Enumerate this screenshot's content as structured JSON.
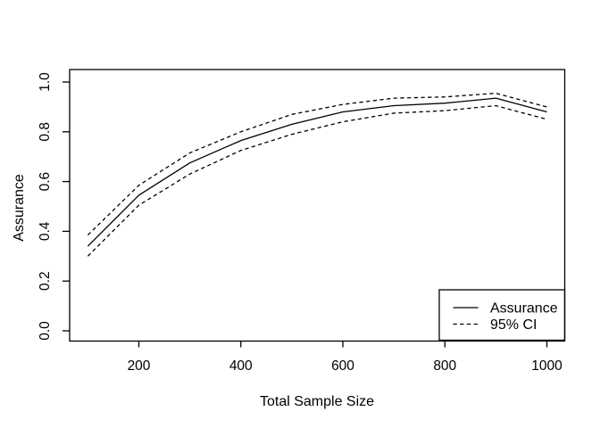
{
  "colors": {
    "background": "#ffffff",
    "foreground": "#000000"
  },
  "chart_data": {
    "type": "line",
    "title": "",
    "xlabel": "Total Sample Size",
    "ylabel": "Assurance",
    "x": [
      100,
      200,
      300,
      400,
      500,
      600,
      700,
      800,
      900,
      1000
    ],
    "series": [
      {
        "name": "Assurance",
        "line_style": "solid",
        "values": [
          0.34,
          0.545,
          0.675,
          0.765,
          0.83,
          0.88,
          0.905,
          0.915,
          0.935,
          0.88
        ]
      },
      {
        "name": "95% CI upper",
        "line_style": "dashed",
        "values": [
          0.385,
          0.585,
          0.715,
          0.8,
          0.87,
          0.91,
          0.935,
          0.94,
          0.955,
          0.9
        ]
      },
      {
        "name": "95% CI lower",
        "line_style": "dashed",
        "values": [
          0.3,
          0.505,
          0.63,
          0.725,
          0.79,
          0.84,
          0.875,
          0.885,
          0.905,
          0.85
        ]
      }
    ],
    "x_ticks": [
      "200",
      "400",
      "600",
      "800",
      "1000"
    ],
    "y_ticks": [
      "0.0",
      "0.2",
      "0.4",
      "0.6",
      "0.8",
      "1.0"
    ],
    "xlim": [
      64,
      1036
    ],
    "ylim": [
      -0.04,
      1.04
    ],
    "grid": false,
    "legend": {
      "position": "bottomright",
      "entries": [
        {
          "label": "Assurance",
          "line_style": "solid"
        },
        {
          "label": "95% CI",
          "line_style": "dashed"
        }
      ]
    }
  }
}
